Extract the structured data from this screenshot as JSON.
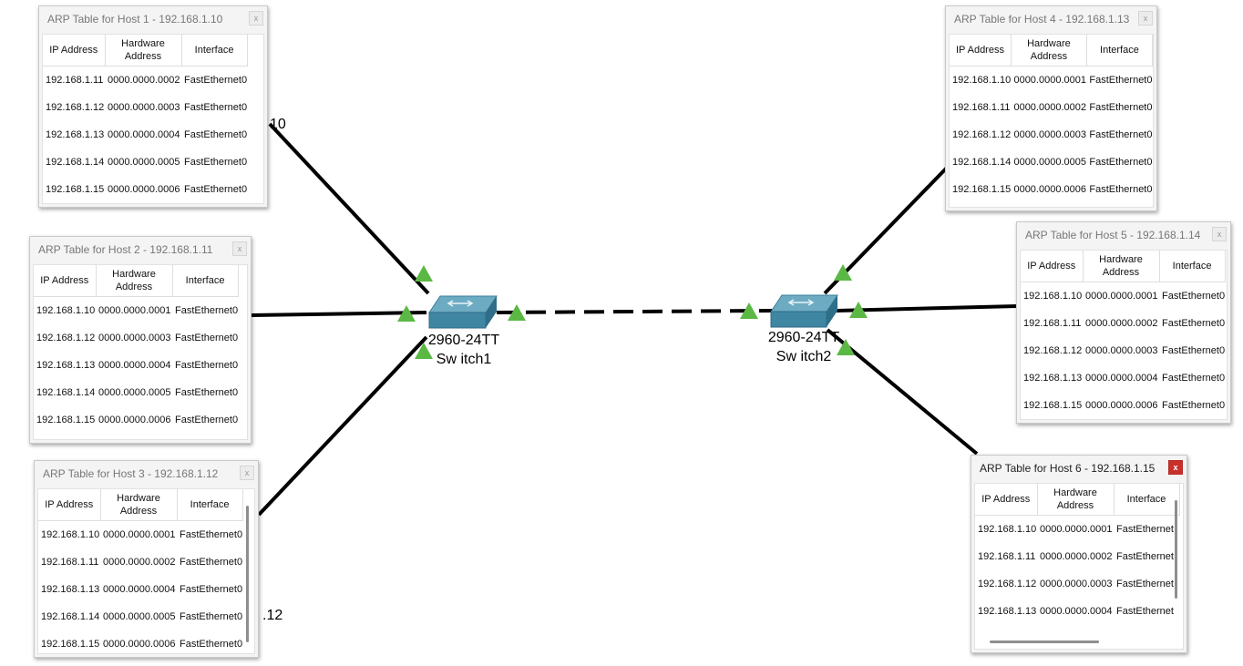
{
  "colors": {
    "link": "#000000",
    "port_up": "#5cb845",
    "switch_top": "#6dabc2",
    "switch_side": "#2e6e89",
    "close_active": "#c9302c"
  },
  "switches": [
    {
      "model": "2960-24TT",
      "name": "Sw itch1"
    },
    {
      "model": "2960-24TT",
      "name": "Sw itch2"
    }
  ],
  "background_labels": {
    "host1_ip_fragment": "10",
    "host3_ip_fragment": ".12"
  },
  "column_headers": {
    "ip": "IP Address",
    "hw": "Hardware Address",
    "iface": "Interface"
  },
  "arp_windows": [
    {
      "title": "ARP Table for Host 1 - 192.168.1.10",
      "close": "x",
      "rows": [
        [
          "192.168.1.11",
          "0000.0000.0002",
          "FastEthernet0"
        ],
        [
          "192.168.1.12",
          "0000.0000.0003",
          "FastEthernet0"
        ],
        [
          "192.168.1.13",
          "0000.0000.0004",
          "FastEthernet0"
        ],
        [
          "192.168.1.14",
          "0000.0000.0005",
          "FastEthernet0"
        ],
        [
          "192.168.1.15",
          "0000.0000.0006",
          "FastEthernet0"
        ]
      ]
    },
    {
      "title": "ARP Table for Host 2 - 192.168.1.11",
      "close": "x",
      "rows": [
        [
          "192.168.1.10",
          "0000.0000.0001",
          "FastEthernet0"
        ],
        [
          "192.168.1.12",
          "0000.0000.0003",
          "FastEthernet0"
        ],
        [
          "192.168.1.13",
          "0000.0000.0004",
          "FastEthernet0"
        ],
        [
          "192.168.1.14",
          "0000.0000.0005",
          "FastEthernet0"
        ],
        [
          "192.168.1.15",
          "0000.0000.0006",
          "FastEthernet0"
        ]
      ]
    },
    {
      "title": "ARP Table for Host 3 - 192.168.1.12",
      "close": "x",
      "rows": [
        [
          "192.168.1.10",
          "0000.0000.0001",
          "FastEthernet0"
        ],
        [
          "192.168.1.11",
          "0000.0000.0002",
          "FastEthernet0"
        ],
        [
          "192.168.1.13",
          "0000.0000.0004",
          "FastEthernet0"
        ],
        [
          "192.168.1.14",
          "0000.0000.0005",
          "FastEthernet0"
        ],
        [
          "192.168.1.15",
          "0000.0000.0006",
          "FastEthernet0"
        ]
      ]
    },
    {
      "title": "ARP Table for Host 4 - 192.168.1.13",
      "close": "x",
      "rows": [
        [
          "192.168.1.10",
          "0000.0000.0001",
          "FastEthernet0"
        ],
        [
          "192.168.1.11",
          "0000.0000.0002",
          "FastEthernet0"
        ],
        [
          "192.168.1.12",
          "0000.0000.0003",
          "FastEthernet0"
        ],
        [
          "192.168.1.14",
          "0000.0000.0005",
          "FastEthernet0"
        ],
        [
          "192.168.1.15",
          "0000.0000.0006",
          "FastEthernet0"
        ]
      ]
    },
    {
      "title": "ARP Table for Host 5 - 192.168.1.14",
      "close": "x",
      "rows": [
        [
          "192.168.1.10",
          "0000.0000.0001",
          "FastEthernet0"
        ],
        [
          "192.168.1.11",
          "0000.0000.0002",
          "FastEthernet0"
        ],
        [
          "192.168.1.12",
          "0000.0000.0003",
          "FastEthernet0"
        ],
        [
          "192.168.1.13",
          "0000.0000.0004",
          "FastEthernet0"
        ],
        [
          "192.168.1.15",
          "0000.0000.0006",
          "FastEthernet0"
        ]
      ]
    },
    {
      "title": "ARP Table for Host 6 - 192.168.1.15",
      "close": "x",
      "rows": [
        [
          "192.168.1.10",
          "0000.0000.0001",
          "FastEthernet"
        ],
        [
          "192.168.1.11",
          "0000.0000.0002",
          "FastEthernet"
        ],
        [
          "192.168.1.12",
          "0000.0000.0003",
          "FastEthernet"
        ],
        [
          "192.168.1.13",
          "0000.0000.0004",
          "FastEthernet"
        ]
      ]
    }
  ]
}
